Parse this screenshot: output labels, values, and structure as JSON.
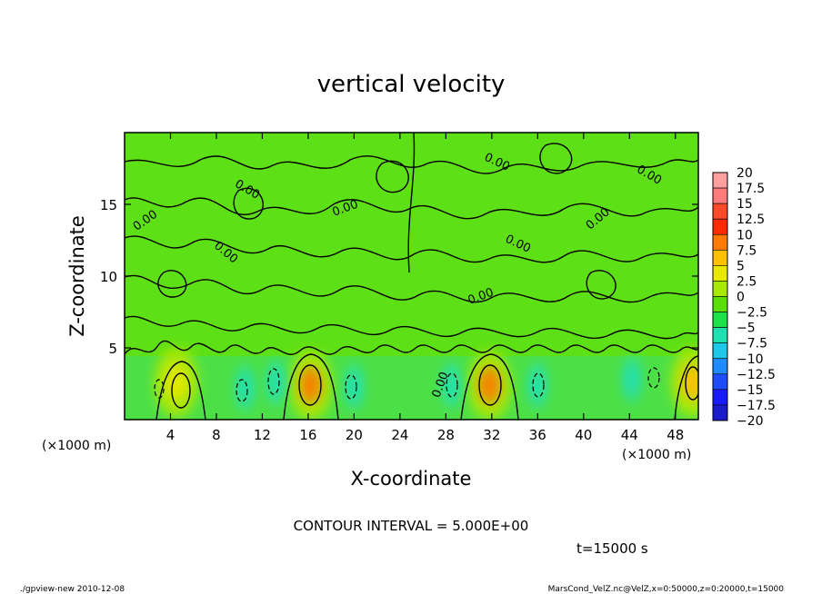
{
  "chart_data": {
    "type": "heatmap",
    "title": "vertical velocity",
    "xlabel": "X-coordinate",
    "ylabel": "Z-coordinate",
    "x_unit": "(×1000 m)",
    "x_unit_left": "(×1000 m)",
    "xlim": [
      0,
      50
    ],
    "ylim": [
      0,
      20
    ],
    "x_ticks": [
      "4",
      "8",
      "12",
      "16",
      "20",
      "24",
      "28",
      "32",
      "36",
      "40",
      "44",
      "48"
    ],
    "y_ticks": [
      "5",
      "10",
      "15"
    ],
    "contour_labels": [
      "0.00",
      "0.00",
      "0.00",
      "0.00",
      "0.00",
      "0.00",
      "0.00",
      "0.00",
      "0.00",
      "0.00"
    ],
    "colorbar": {
      "labels": [
        "20",
        "17.5",
        "15",
        "12.5",
        "10",
        "7.5",
        "5",
        "2.5",
        "0",
        "−2.5",
        "−5",
        "−7.5",
        "−10",
        "−12.5",
        "−15",
        "−17.5",
        "−20"
      ],
      "colors": [
        "#ff9f9f",
        "#ff7a7a",
        "#ff4a2a",
        "#ff2a00",
        "#ff7a00",
        "#ffc000",
        "#e8e800",
        "#a8e800",
        "#5ae000",
        "#1ee04a",
        "#1ee0b0",
        "#1ec8e8",
        "#1e8cff",
        "#1e4cff",
        "#1a1aff",
        "#1a1ac8",
        "#5a1ac8"
      ]
    },
    "features": [
      {
        "kind": "updraft",
        "x": 4.5,
        "z": 2.6,
        "value": 5
      },
      {
        "kind": "updraft",
        "x": 16.2,
        "z": 2.4,
        "value": 10
      },
      {
        "kind": "updraft",
        "x": 31.8,
        "z": 2.4,
        "value": 10
      },
      {
        "kind": "updraft",
        "x": 49.5,
        "z": 2.6,
        "value": 7.5
      },
      {
        "kind": "downdraft",
        "x": 10.5,
        "z": 2.2,
        "value": -5
      },
      {
        "kind": "downdraft",
        "x": 13.2,
        "z": 2.6,
        "value": -5
      },
      {
        "kind": "downdraft",
        "x": 20.0,
        "z": 2.3,
        "value": -5
      },
      {
        "kind": "downdraft",
        "x": 28.5,
        "z": 2.4,
        "value": -5
      },
      {
        "kind": "downdraft",
        "x": 36.0,
        "z": 2.4,
        "value": -5
      },
      {
        "kind": "downdraft",
        "x": 44.2,
        "z": 2.8,
        "value": -5
      }
    ]
  },
  "contour_interval": "CONTOUR INTERVAL = 5.000E+00",
  "time_label": "t=15000 s",
  "footer_left": "./gpview-new  2010-12-08",
  "footer_right": "MarsCond_VelZ.nc@VelZ,x=0:50000,z=0:20000,t=15000"
}
